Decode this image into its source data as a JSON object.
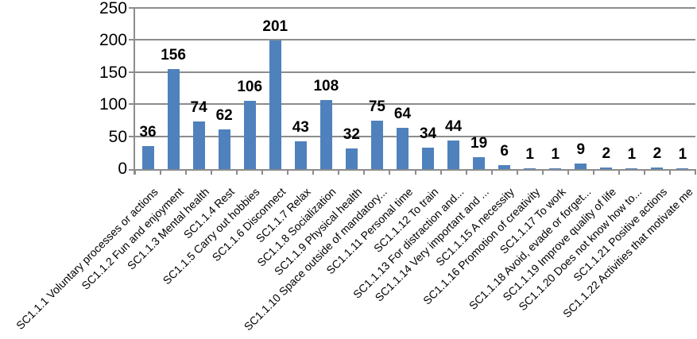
{
  "chart_data": {
    "type": "bar",
    "title": "",
    "xlabel": "",
    "ylabel": "",
    "legend": "none",
    "grid": true,
    "data_labels": true,
    "ylim": [
      0,
      250
    ],
    "y_ticks": [
      0,
      50,
      100,
      150,
      200,
      250
    ],
    "categories": [
      "SC1.1.1 Voluntary processes or actions",
      "SC1.1.2 Fun and enjoyment",
      "SC1.1.3 Mental health",
      "SC1.1.4 Rest",
      "SC1.1.5 Carry out hobbies",
      "SC1.1.6 Disconnect",
      "SC1.1.7 Relax",
      "SC1.1.8 Socialization",
      "SC1.1.9 Physical health",
      "SC1.1.10 Space outside of mandatory...",
      "SC1.1.11 Personal time",
      "SC1.1.12 To train",
      "SC1.1.13 For distraction and...",
      "SC1.1.14 Very important and ...",
      "SC1.1.15 A necessity",
      "SC1.1.16 Promotion of creativity",
      "SC1.1.17 To work",
      "SC1.1.18 Avoid, evade or forget...",
      "SC1.1.19 Improve quality of life",
      "SC1.1.20 Does not know how to...",
      "SC1.1.21 Positive actions",
      "SC1.1.22 Activities that motivate me"
    ],
    "values": [
      36,
      156,
      74,
      62,
      106,
      201,
      43,
      108,
      32,
      75,
      64,
      34,
      44,
      19,
      6,
      1,
      1,
      9,
      2,
      1,
      2,
      1
    ],
    "colors": {
      "bar": "#4F81BD",
      "grid": "#8C8C8C",
      "axis": "#8C8C8C",
      "text": "#000000",
      "background": "#FFFFFF"
    }
  }
}
